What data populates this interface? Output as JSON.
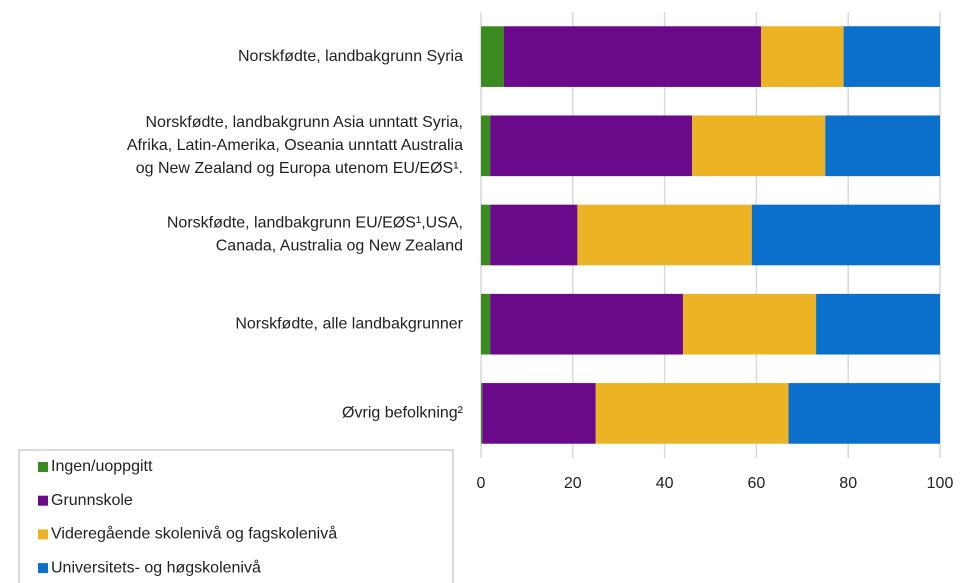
{
  "chart_data": {
    "type": "stacked-bar-horizontal",
    "categories": [
      [
        "Norskfødte, landbakgrunn Syria"
      ],
      [
        "Norskfødte, landbakgrunn Asia unntatt Syria,",
        "Afrika, Latin-Amerika, Oseania unntatt Australia",
        "og New Zealand og Europa utenom EU/EØS¹."
      ],
      [
        "Norskfødte, landbakgrunn EU/EØS¹,USA,",
        "Canada, Australia og New Zealand"
      ],
      [
        "Norskfødte, alle landbakgrunner"
      ],
      [
        "Øvrig befolkning²"
      ]
    ],
    "series": [
      {
        "name": "Ingen/uoppgitt",
        "color": "#3a8a1f",
        "values": [
          5,
          2,
          2,
          2,
          0.3
        ]
      },
      {
        "name": "Grunnskole",
        "color": "#6a0a8a",
        "values": [
          56,
          44,
          19,
          42,
          24.7
        ]
      },
      {
        "name": "Videregående skolenivå og fagskolenivå",
        "color": "#ecb424",
        "values": [
          18,
          29,
          38,
          29,
          42
        ]
      },
      {
        "name": "Universitets- og høgskolenivå",
        "color": "#0a70cc",
        "values": [
          21,
          25,
          41,
          27,
          33
        ]
      }
    ],
    "xlim": [
      0,
      100
    ],
    "xticks": [
      0,
      20,
      40,
      60,
      80,
      100
    ],
    "grid": true,
    "legend": "bottom-left"
  }
}
